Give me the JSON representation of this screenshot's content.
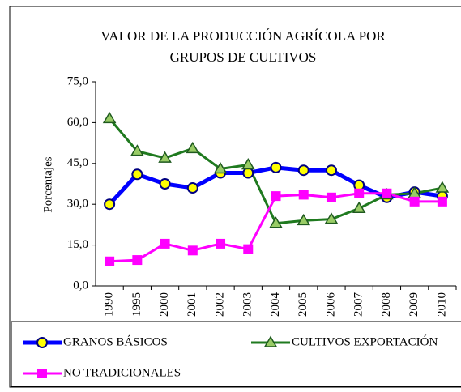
{
  "chart_data": {
    "type": "line",
    "title": [
      "VALOR DE LA PRODUCCIÓN AGRÍCOLA POR",
      "GRUPOS DE CULTIVOS"
    ],
    "y_label": "Porcentajes",
    "categories": [
      "1990",
      "1995",
      "2000",
      "2001",
      "2002",
      "2003",
      "2004",
      "2005",
      "2006",
      "2007",
      "2008",
      "2009",
      "2010"
    ],
    "series": [
      {
        "name": "GRANOS BÁSICOS",
        "color": "#0000ff",
        "marker": "circle",
        "marker_fill": "#ffff00",
        "marker_stroke": "#000080",
        "values": [
          30,
          41,
          37.5,
          36,
          41.5,
          41.5,
          43.5,
          42.5,
          42.5,
          37,
          32.5,
          34.5,
          33
        ]
      },
      {
        "name": "CULTIVOS EXPORTACIÓN",
        "color": "#1f7a1f",
        "marker": "triangle",
        "marker_fill": "#99cc66",
        "marker_stroke": "#1f5a1f",
        "values": [
          61.5,
          49.5,
          47,
          50.5,
          43,
          44.5,
          23,
          24,
          24.5,
          28.5,
          33.5,
          34,
          36
        ]
      },
      {
        "name": "NO TRADICIONALES",
        "color": "#ff00ff",
        "marker": "square",
        "marker_fill": "#ff00ff",
        "marker_stroke": "#ff00ff",
        "values": [
          9,
          9.5,
          15.5,
          13,
          15.5,
          13.5,
          33,
          33.5,
          32.5,
          34,
          34,
          31,
          31
        ]
      }
    ],
    "ylim": [
      0,
      75
    ],
    "yticks": [
      {
        "value": 0,
        "label": "0,0"
      },
      {
        "value": 15,
        "label": "15,0"
      },
      {
        "value": 30,
        "label": "30,0"
      },
      {
        "value": 45,
        "label": "45,0"
      },
      {
        "value": 60,
        "label": "60,0"
      },
      {
        "value": 75,
        "label": "75,0"
      }
    ],
    "grid": false
  }
}
